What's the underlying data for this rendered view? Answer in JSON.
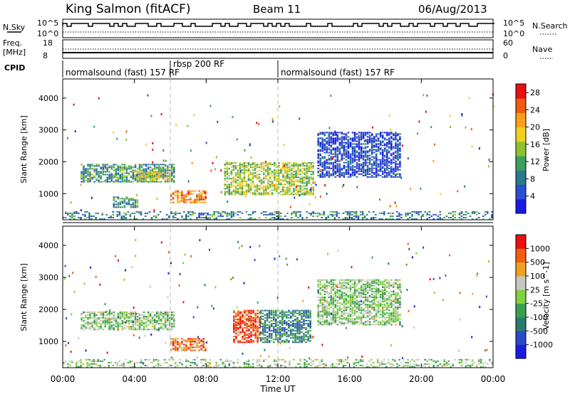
{
  "header": {
    "station": "King Salmon (fitACF)",
    "beam": "Beam 11",
    "date": "06/Aug/2013"
  },
  "nsky_panel": {
    "left_label": "N.Sky",
    "right_label": "N.Search",
    "left_ticks": [
      "10^5",
      "10^0"
    ],
    "right_ticks": [
      "10^5",
      "10^0"
    ]
  },
  "freq_panel": {
    "left_label_1": "Freq.",
    "left_label_2": "[MHz]",
    "right_label": "Nave",
    "left_ticks": [
      "18",
      "8"
    ],
    "right_ticks": [
      "60",
      "0"
    ]
  },
  "cpid_panel": {
    "label": "CPID",
    "modes": [
      {
        "label": "normalsound (fast) 157 RF",
        "start": "00:00",
        "end": "06:00"
      },
      {
        "label": "rbsp 200 RF",
        "start": "06:00",
        "end": "12:00"
      },
      {
        "label": "normalsound (fast) 157 RF",
        "start": "12:00",
        "end": "24:00"
      }
    ]
  },
  "x_axis": {
    "label": "Time UT",
    "ticks": [
      "00:00",
      "04:00",
      "08:00",
      "12:00",
      "16:00",
      "20:00",
      "00:00"
    ]
  },
  "chart_data": [
    {
      "type": "heatmap",
      "name": "power",
      "ylabel": "Slant Range [km]",
      "yticks": [
        1000,
        2000,
        3000,
        4000
      ],
      "ylim": [
        180,
        4600
      ],
      "xlim_hours": [
        0,
        24
      ],
      "colorbar": {
        "label": "Power [dB]",
        "ticks": [
          "4",
          "8",
          "12",
          "16",
          "20",
          "24",
          "28"
        ],
        "range": [
          0,
          30
        ],
        "colors": [
          "#1a1ae6",
          "#2a4fd0",
          "#2a7a8a",
          "#3aa060",
          "#90c030",
          "#f0d020",
          "#f8a018",
          "#f05a10",
          "#e81010"
        ]
      },
      "regions": [
        {
          "t0": 1.0,
          "t1": 6.2,
          "r0": 1350,
          "r1": 1900,
          "level": 0.35
        },
        {
          "t0": 4.0,
          "t1": 6.0,
          "r0": 1400,
          "r1": 1700,
          "level": 0.6
        },
        {
          "t0": 6.0,
          "t1": 8.0,
          "r0": 700,
          "r1": 1100,
          "level": 0.75
        },
        {
          "t0": 2.8,
          "t1": 4.2,
          "r0": 550,
          "r1": 900,
          "level": 0.35
        },
        {
          "t0": 9.0,
          "t1": 14.0,
          "r0": 950,
          "r1": 1950,
          "level": 0.5
        },
        {
          "t0": 14.2,
          "t1": 18.8,
          "r0": 1500,
          "r1": 2900,
          "level": 0.15
        },
        {
          "t0": 0.0,
          "t1": 24.0,
          "r0": 180,
          "r1": 450,
          "level": 0.3
        }
      ]
    },
    {
      "type": "heatmap",
      "name": "velocity",
      "ylabel": "Slant Range [km]",
      "yticks": [
        1000,
        2000,
        3000,
        4000
      ],
      "ylim": [
        180,
        4600
      ],
      "xlim_hours": [
        0,
        24
      ],
      "colorbar": {
        "label": "Velocity [m s^-1]",
        "ticks": [
          "1000",
          "500",
          "100",
          "25",
          "-25",
          "-100",
          "-500",
          "-1000"
        ],
        "colors": [
          "#1a1ae6",
          "#2a4ac8",
          "#2a7a70",
          "#3aa050",
          "#80d040",
          "#c8c8c0",
          "#f0a020",
          "#f06010",
          "#e81010"
        ]
      },
      "regions": [
        {
          "t0": 1.0,
          "t1": 6.2,
          "r0": 1350,
          "r1": 1900,
          "level": 0.5
        },
        {
          "t0": 6.0,
          "t1": 8.0,
          "r0": 700,
          "r1": 1100,
          "level": 0.8
        },
        {
          "t0": 9.5,
          "t1": 11.0,
          "r0": 950,
          "r1": 1950,
          "level": 0.88
        },
        {
          "t0": 11.0,
          "t1": 13.8,
          "r0": 950,
          "r1": 1950,
          "level": 0.3
        },
        {
          "t0": 14.2,
          "t1": 18.8,
          "r0": 1500,
          "r1": 2900,
          "level": 0.5
        },
        {
          "t0": 0.0,
          "t1": 24.0,
          "r0": 180,
          "r1": 450,
          "level": 0.5
        }
      ]
    }
  ]
}
